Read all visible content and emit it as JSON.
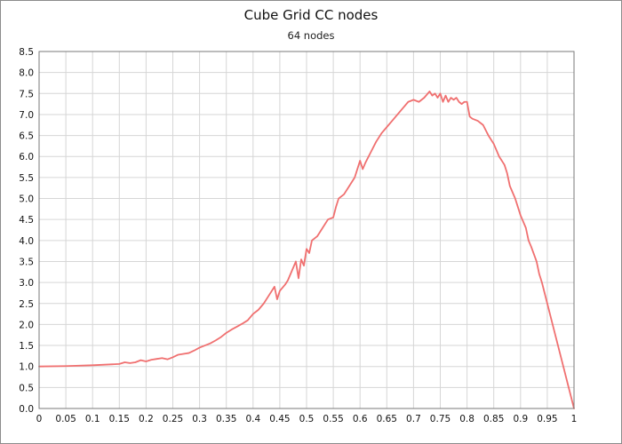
{
  "chart_data": {
    "type": "line",
    "title": "Cube Grid CC nodes",
    "subtitle": "64 nodes",
    "xlabel": "",
    "ylabel": "",
    "xlim": [
      0,
      1
    ],
    "ylim": [
      0,
      8.5
    ],
    "grid": true,
    "x_ticks": [
      "0",
      "0.05",
      "0.1",
      "0.15",
      "0.2",
      "0.25",
      "0.3",
      "0.35",
      "0.4",
      "0.45",
      "0.5",
      "0.55",
      "0.6",
      "0.65",
      "0.7",
      "0.75",
      "0.8",
      "0.85",
      "0.9",
      "0.95",
      "1"
    ],
    "y_ticks": [
      "0.0",
      "0.5",
      "1.0",
      "1.5",
      "2.0",
      "2.5",
      "3.0",
      "3.5",
      "4.0",
      "4.5",
      "5.0",
      "5.5",
      "6.0",
      "6.5",
      "7.0",
      "7.5",
      "8.0",
      "8.5"
    ],
    "line_color": "#f07070",
    "series": [
      {
        "x": [
          0,
          0.05,
          0.1,
          0.15,
          0.16,
          0.17,
          0.18,
          0.19,
          0.2,
          0.21,
          0.22,
          0.23,
          0.24,
          0.25,
          0.26,
          0.27,
          0.28,
          0.29,
          0.3,
          0.31,
          0.32,
          0.33,
          0.34,
          0.35,
          0.36,
          0.37,
          0.38,
          0.39,
          0.4,
          0.41,
          0.42,
          0.43,
          0.44,
          0.445,
          0.45,
          0.46,
          0.465,
          0.47,
          0.48,
          0.485,
          0.49,
          0.495,
          0.5,
          0.505,
          0.51,
          0.52,
          0.53,
          0.54,
          0.55,
          0.555,
          0.56,
          0.57,
          0.58,
          0.59,
          0.6,
          0.605,
          0.61,
          0.62,
          0.63,
          0.64,
          0.65,
          0.66,
          0.67,
          0.68,
          0.69,
          0.7,
          0.71,
          0.72,
          0.73,
          0.735,
          0.74,
          0.745,
          0.75,
          0.755,
          0.76,
          0.765,
          0.77,
          0.775,
          0.78,
          0.785,
          0.79,
          0.795,
          0.8,
          0.805,
          0.81,
          0.82,
          0.83,
          0.84,
          0.85,
          0.86,
          0.87,
          0.875,
          0.88,
          0.89,
          0.9,
          0.91,
          0.915,
          0.92,
          0.93,
          0.935,
          0.94,
          0.95,
          0.96,
          0.97,
          0.98,
          0.99,
          1.0
        ],
        "y": [
          1.0,
          1.01,
          1.03,
          1.06,
          1.1,
          1.08,
          1.1,
          1.15,
          1.12,
          1.16,
          1.18,
          1.2,
          1.17,
          1.22,
          1.28,
          1.3,
          1.32,
          1.38,
          1.45,
          1.5,
          1.55,
          1.62,
          1.7,
          1.8,
          1.88,
          1.95,
          2.02,
          2.1,
          2.25,
          2.35,
          2.5,
          2.7,
          2.9,
          2.6,
          2.8,
          2.95,
          3.05,
          3.2,
          3.5,
          3.1,
          3.55,
          3.4,
          3.8,
          3.7,
          4.0,
          4.1,
          4.3,
          4.5,
          4.55,
          4.8,
          5.0,
          5.1,
          5.3,
          5.5,
          5.9,
          5.7,
          5.85,
          6.1,
          6.35,
          6.55,
          6.7,
          6.85,
          7.0,
          7.15,
          7.3,
          7.35,
          7.3,
          7.4,
          7.55,
          7.45,
          7.5,
          7.4,
          7.5,
          7.3,
          7.45,
          7.3,
          7.4,
          7.35,
          7.4,
          7.3,
          7.25,
          7.3,
          7.3,
          6.95,
          6.9,
          6.85,
          6.75,
          6.5,
          6.3,
          6.0,
          5.8,
          5.6,
          5.3,
          5.0,
          4.6,
          4.3,
          4.0,
          3.85,
          3.5,
          3.2,
          3.0,
          2.5,
          2.0,
          1.5,
          1.0,
          0.5,
          0.0
        ]
      }
    ]
  }
}
